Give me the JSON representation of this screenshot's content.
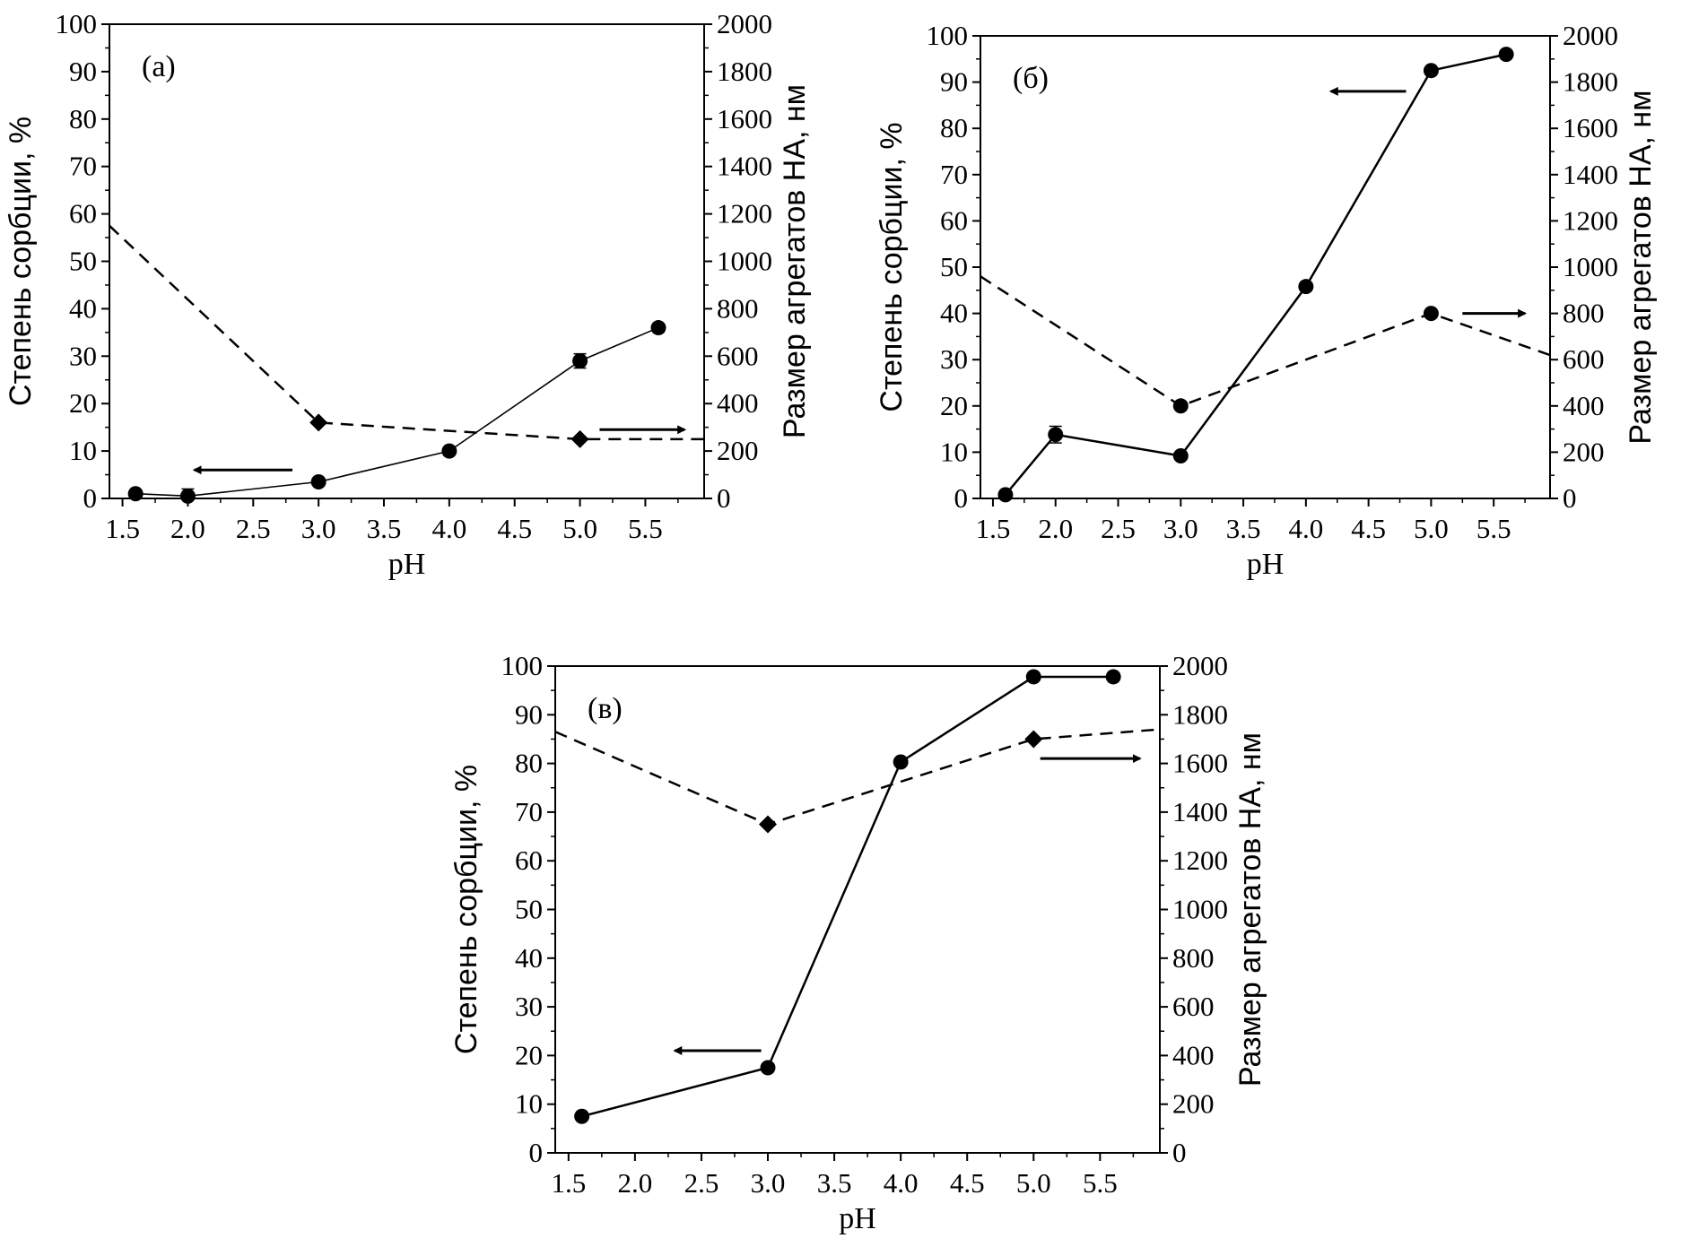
{
  "chart_data": [
    {
      "type": "line",
      "panel_label": "(a)",
      "xlabel": "pH",
      "ylabel_left": "Степень сорбции, %",
      "ylabel_right": "Размер агрегатов HA, нм",
      "xlim": [
        1.4,
        5.95
      ],
      "ylim_left": [
        0,
        100
      ],
      "ylim_right": [
        0,
        2000
      ],
      "x_ticks": [
        "1.5",
        "2.0",
        "2.5",
        "3.0",
        "3.5",
        "4.0",
        "4.5",
        "5.0",
        "5.5"
      ],
      "y_left_ticks": [
        "0",
        "10",
        "20",
        "30",
        "40",
        "50",
        "60",
        "70",
        "80",
        "90",
        "100"
      ],
      "y_right_ticks": [
        "0",
        "200",
        "400",
        "600",
        "800",
        "1000",
        "1200",
        "1400",
        "1600",
        "1800",
        "2000"
      ],
      "series": [
        {
          "axis": "left",
          "style": "solid",
          "marker": "circle",
          "x": [
            1.6,
            2.0,
            3.0,
            4.0,
            5.0,
            5.6
          ],
          "y": [
            1,
            0.5,
            3.5,
            10,
            29,
            36
          ],
          "yerr": [
            0,
            1.5,
            0,
            0,
            1.5,
            0
          ]
        },
        {
          "axis": "right",
          "style": "dashed",
          "marker": "diamond",
          "x": [
            1.4,
            3.0,
            5.0,
            5.95
          ],
          "y": [
            1150,
            320,
            250,
            250
          ],
          "marker_x": [
            3.0,
            5.0
          ]
        }
      ],
      "arrows": [
        {
          "x1": 2.8,
          "x2": 2.05,
          "axis": "left",
          "y": 6
        },
        {
          "x1": 5.15,
          "x2": 5.8,
          "axis": "left",
          "y": 14.5
        }
      ]
    },
    {
      "type": "line",
      "panel_label": "(б)",
      "xlabel": "pH",
      "ylabel_left": "Степень сорбции, %",
      "ylabel_right": "Размер агрегатов HA, нм",
      "xlim": [
        1.4,
        5.95
      ],
      "ylim_left": [
        0,
        100
      ],
      "ylim_right": [
        0,
        2000
      ],
      "x_ticks": [
        "1.5",
        "2.0",
        "2.5",
        "3.0",
        "3.5",
        "4.0",
        "4.5",
        "5.0",
        "5.5"
      ],
      "y_left_ticks": [
        "0",
        "10",
        "20",
        "30",
        "40",
        "50",
        "60",
        "70",
        "80",
        "90",
        "100"
      ],
      "y_right_ticks": [
        "0",
        "200",
        "400",
        "600",
        "800",
        "1000",
        "1200",
        "1400",
        "1600",
        "1800",
        "2000"
      ],
      "series": [
        {
          "axis": "left",
          "style": "solid",
          "marker": "circle",
          "x": [
            1.6,
            2.0,
            3.0,
            4.0,
            5.0,
            5.6
          ],
          "y": [
            0.8,
            13.8,
            9.2,
            45.8,
            92.5,
            96
          ],
          "yerr": [
            0,
            1.8,
            0.6,
            0,
            0,
            0
          ]
        },
        {
          "axis": "right",
          "style": "dashed",
          "marker": "circle",
          "x": [
            1.4,
            3.0,
            5.0,
            5.95
          ],
          "y": [
            960,
            400,
            800,
            620
          ],
          "marker_x": [
            3.0,
            5.0
          ]
        }
      ],
      "arrows": [
        {
          "x1": 4.8,
          "x2": 4.2,
          "axis": "left",
          "y": 88
        },
        {
          "x1": 5.25,
          "x2": 5.75,
          "axis": "left",
          "y": 40
        }
      ]
    },
    {
      "type": "line",
      "panel_label": "(в)",
      "xlabel": "pH",
      "ylabel_left": "Степень сорбции, %",
      "ylabel_right": "Размер агрегатов HA, нм",
      "xlim": [
        1.4,
        5.95
      ],
      "ylim_left": [
        0,
        100
      ],
      "ylim_right": [
        0,
        2000
      ],
      "x_ticks": [
        "1.5",
        "2.0",
        "2.5",
        "3.0",
        "3.5",
        "4.0",
        "4.5",
        "5.0",
        "5.5"
      ],
      "y_left_ticks": [
        "0",
        "10",
        "20",
        "30",
        "40",
        "50",
        "60",
        "70",
        "80",
        "90",
        "100"
      ],
      "y_right_ticks": [
        "0",
        "200",
        "400",
        "600",
        "800",
        "1000",
        "1200",
        "1400",
        "1600",
        "1800",
        "2000"
      ],
      "series": [
        {
          "axis": "left",
          "style": "solid",
          "marker": "circle",
          "x": [
            1.6,
            3.0,
            4.0,
            5.0,
            5.6
          ],
          "y": [
            7.5,
            17.5,
            80.3,
            97.8,
            97.8
          ],
          "yerr": [
            0,
            0,
            0,
            0,
            0
          ]
        },
        {
          "axis": "right",
          "style": "dashed",
          "marker": "diamond",
          "x": [
            1.4,
            3.0,
            5.0,
            5.95
          ],
          "y": [
            1730,
            1350,
            1700,
            1740
          ],
          "marker_x": [
            3.0,
            5.0
          ]
        }
      ],
      "arrows": [
        {
          "x1": 2.95,
          "x2": 2.3,
          "axis": "left",
          "y": 21
        },
        {
          "x1": 5.05,
          "x2": 5.8,
          "axis": "left",
          "y": 81
        }
      ]
    }
  ]
}
